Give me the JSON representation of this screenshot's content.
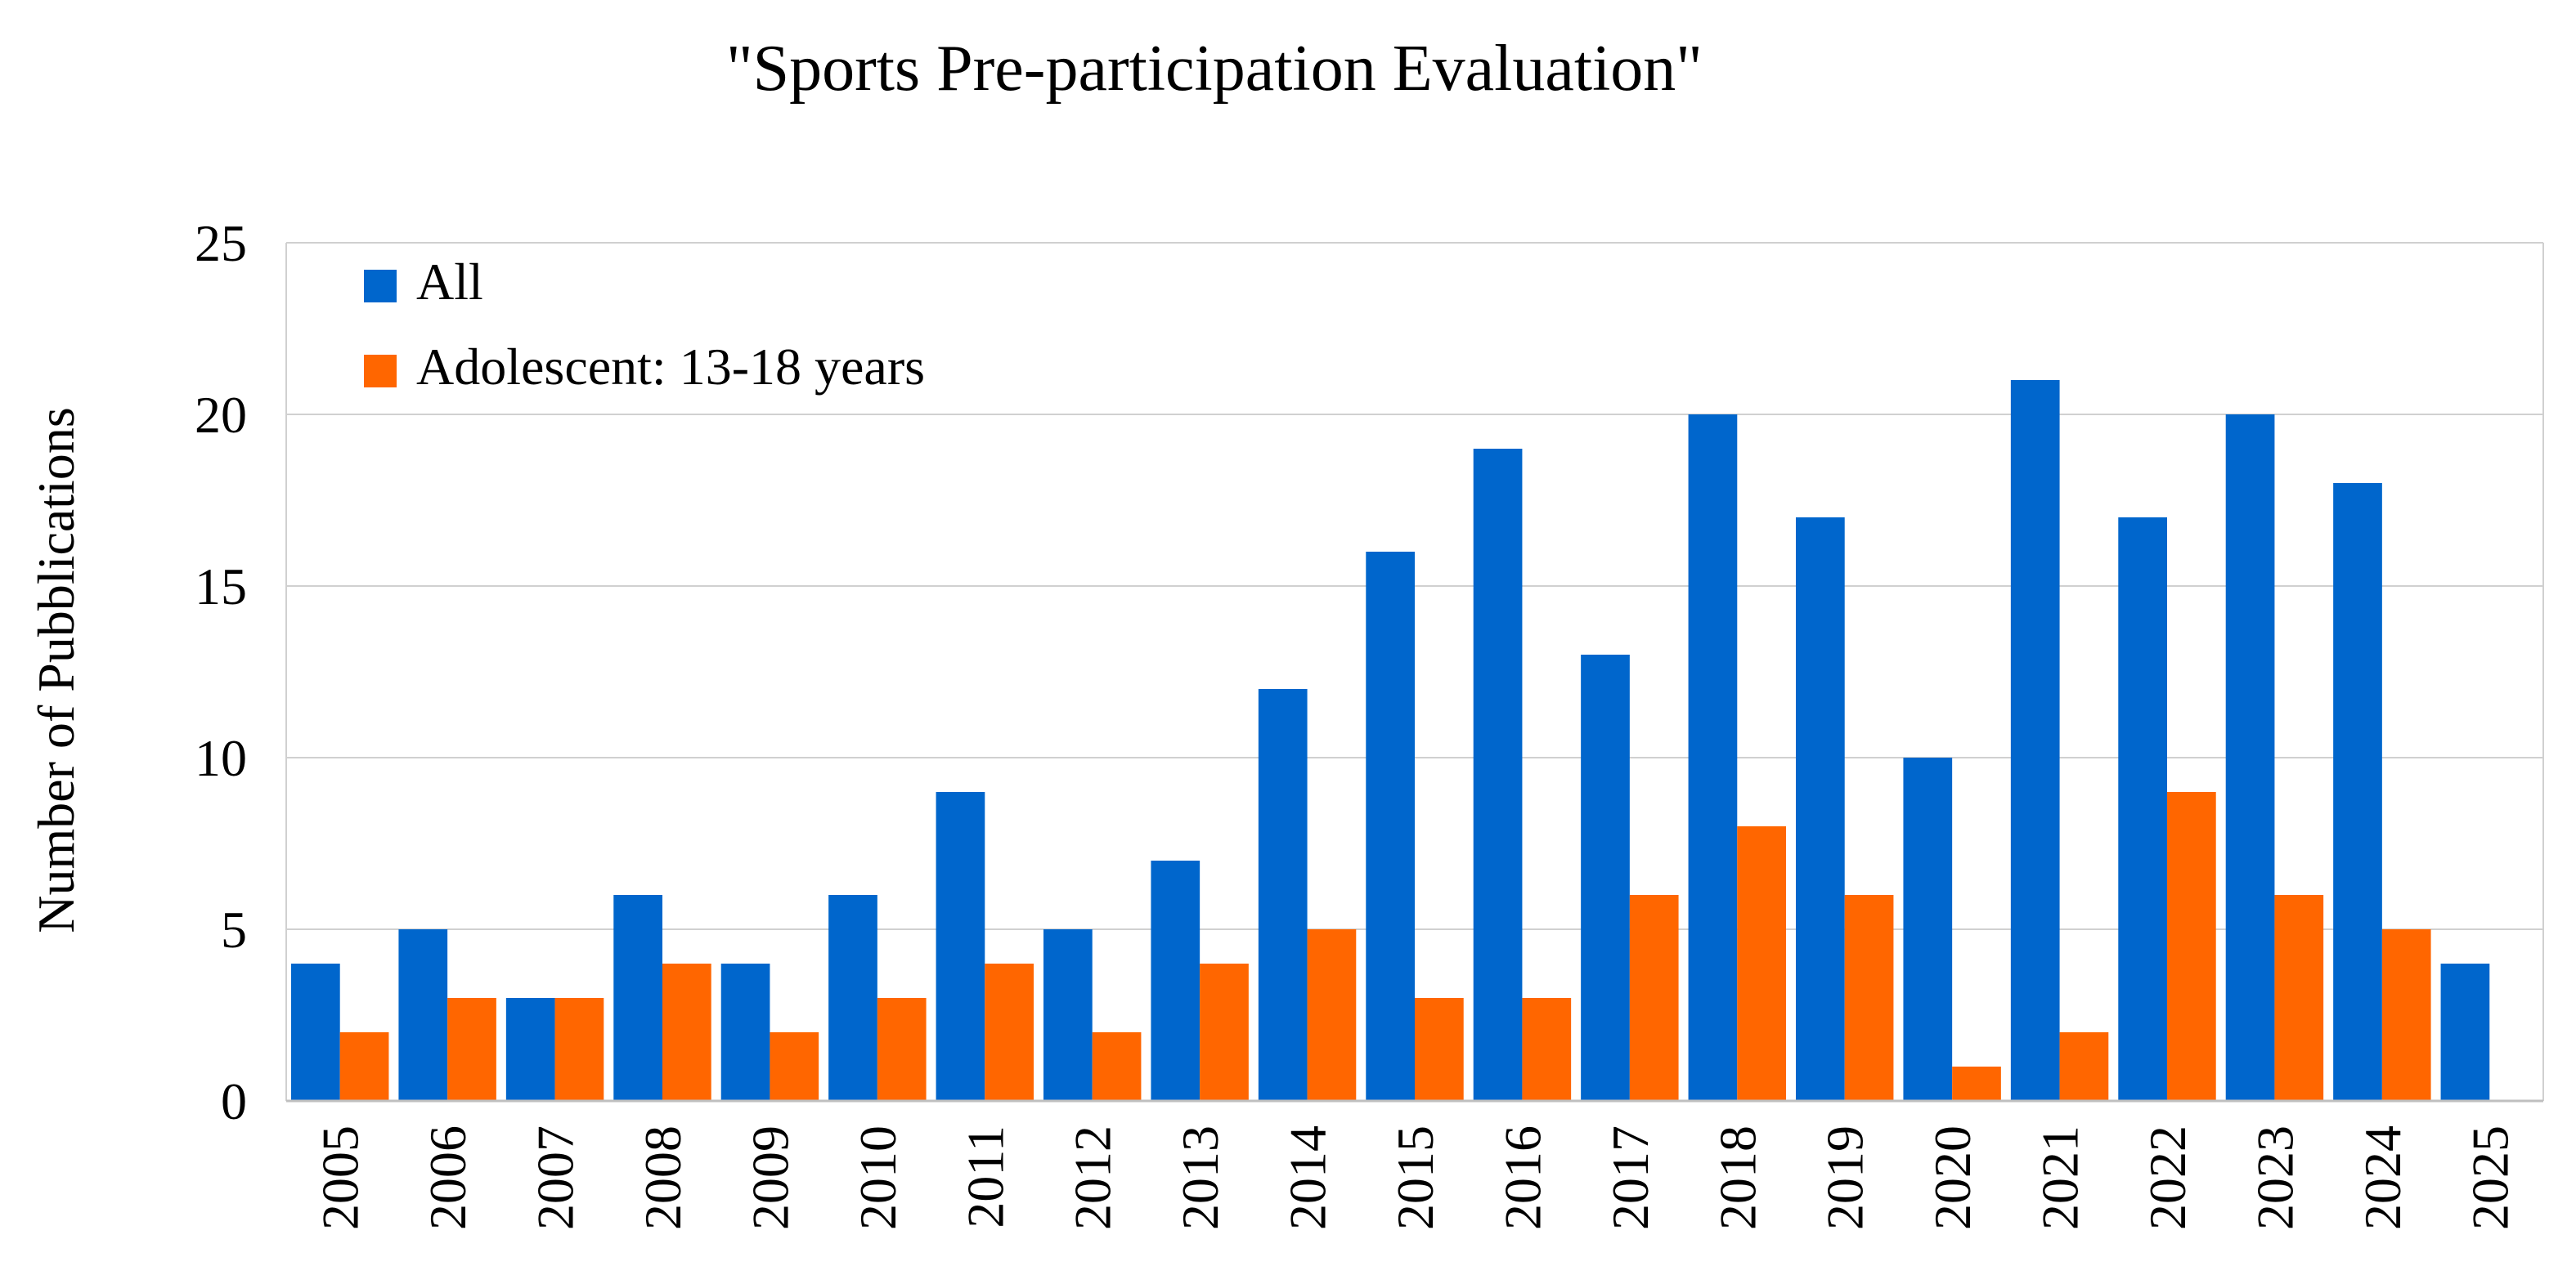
{
  "chart_data": {
    "type": "bar",
    "title": "\"Sports Pre-participation Evaluation\"",
    "xlabel": "",
    "ylabel": "Number of Pubblications",
    "ylim": [
      0,
      25
    ],
    "yticks": [
      0,
      5,
      10,
      15,
      20,
      25
    ],
    "grid": true,
    "legend_position": "top-left",
    "categories": [
      "2005",
      "2006",
      "2007",
      "2008",
      "2009",
      "2010",
      "2011",
      "2012",
      "2013",
      "2014",
      "2015",
      "2016",
      "2017",
      "2018",
      "2019",
      "2020",
      "2021",
      "2022",
      "2023",
      "2024",
      "2025"
    ],
    "series": [
      {
        "name": "All",
        "color": "#0066CC",
        "values": [
          4,
          5,
          3,
          6,
          4,
          6,
          9,
          5,
          7,
          12,
          16,
          19,
          13,
          20,
          17,
          10,
          21,
          17,
          20,
          18,
          4
        ]
      },
      {
        "name": "Adolescent: 13-18 years",
        "color": "#FF6600",
        "values": [
          2,
          3,
          3,
          4,
          2,
          3,
          4,
          2,
          4,
          5,
          3,
          3,
          6,
          8,
          6,
          1,
          2,
          9,
          6,
          5,
          0
        ]
      }
    ]
  }
}
